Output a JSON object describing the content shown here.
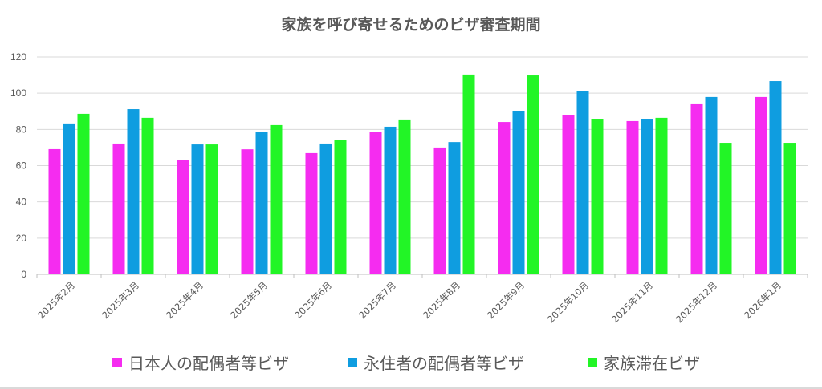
{
  "chart_data": {
    "type": "bar",
    "title": "家族を呼び寄せるためのビザ審査期間",
    "xlabel": "",
    "ylabel": "",
    "ylim": [
      0,
      120
    ],
    "yticks": [
      0,
      20,
      40,
      60,
      80,
      100,
      120
    ],
    "grid": true,
    "legend_position": "bottom",
    "categories": [
      "2025年2月",
      "2025年3月",
      "2025年4月",
      "2025年5月",
      "2025年6月",
      "2025年7月",
      "2025年8月",
      "2025年9月",
      "2025年10月",
      "2025年11月",
      "2025年12月",
      "2026年1月"
    ],
    "series": [
      {
        "name": "日本人の配偶者等ビザ",
        "color": "#f52cf0",
        "values": [
          69.1,
          72.2,
          63.3,
          69.0,
          66.9,
          78.4,
          70.0,
          84.1,
          88.1,
          84.6,
          93.9,
          97.9
        ]
      },
      {
        "name": "永住者の配偶者等ビザ",
        "color": "#0f9de0",
        "values": [
          83.3,
          91.2,
          71.7,
          78.8,
          72.2,
          81.5,
          73.0,
          90.3,
          101.4,
          85.9,
          97.9,
          106.7
        ]
      },
      {
        "name": "家族滞在ビザ",
        "color": "#22f526",
        "values": [
          88.6,
          86.4,
          71.7,
          82.4,
          74.0,
          85.5,
          110.3,
          109.8,
          85.9,
          86.4,
          72.6,
          72.6
        ]
      }
    ]
  }
}
